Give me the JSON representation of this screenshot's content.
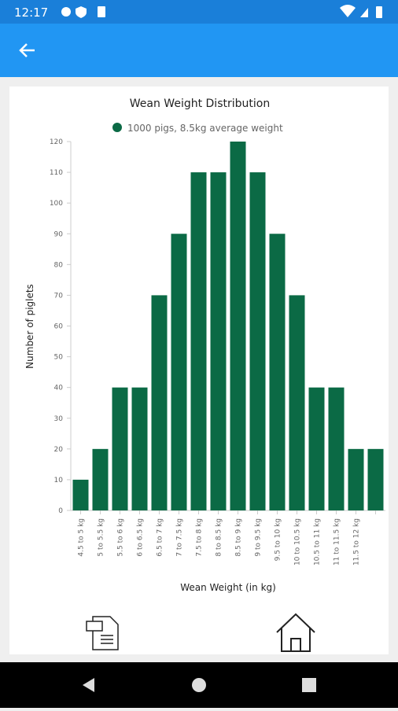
{
  "status_bar": {
    "time": "12:17"
  },
  "chart_data": {
    "type": "bar",
    "title": "Wean Weight Distribution",
    "xlabel": "Wean Weight (in kg)",
    "ylabel": "Number of piglets",
    "categories": [
      "4.5 to 5 kg",
      "5 to 5.5 kg",
      "5.5 to 6 kg",
      "6 to 6.5 kg",
      "6.5 to 7 kg",
      "7 to 7.5 kg",
      "7.5 to 8 kg",
      "8 to 8.5 kg",
      "8.5 to 9 kg",
      "9 to 9.5 kg",
      "9.5 to 10 kg",
      "10 to 10.5 kg",
      "10.5 to 11 kg",
      "11 to 11.5 kg",
      "11.5 to 12 kg",
      null
    ],
    "series": [
      {
        "name": "1000 pigs, 8.5kg average weight",
        "color": "#0b6a45",
        "values": [
          10,
          20,
          40,
          40,
          70,
          90,
          110,
          110,
          120,
          110,
          90,
          70,
          40,
          40,
          20,
          20
        ]
      }
    ],
    "ylim": [
      0,
      120
    ],
    "yticks": [
      0,
      10,
      20,
      30,
      40,
      50,
      60,
      70,
      80,
      90,
      100,
      110,
      120
    ],
    "grid": false
  }
}
